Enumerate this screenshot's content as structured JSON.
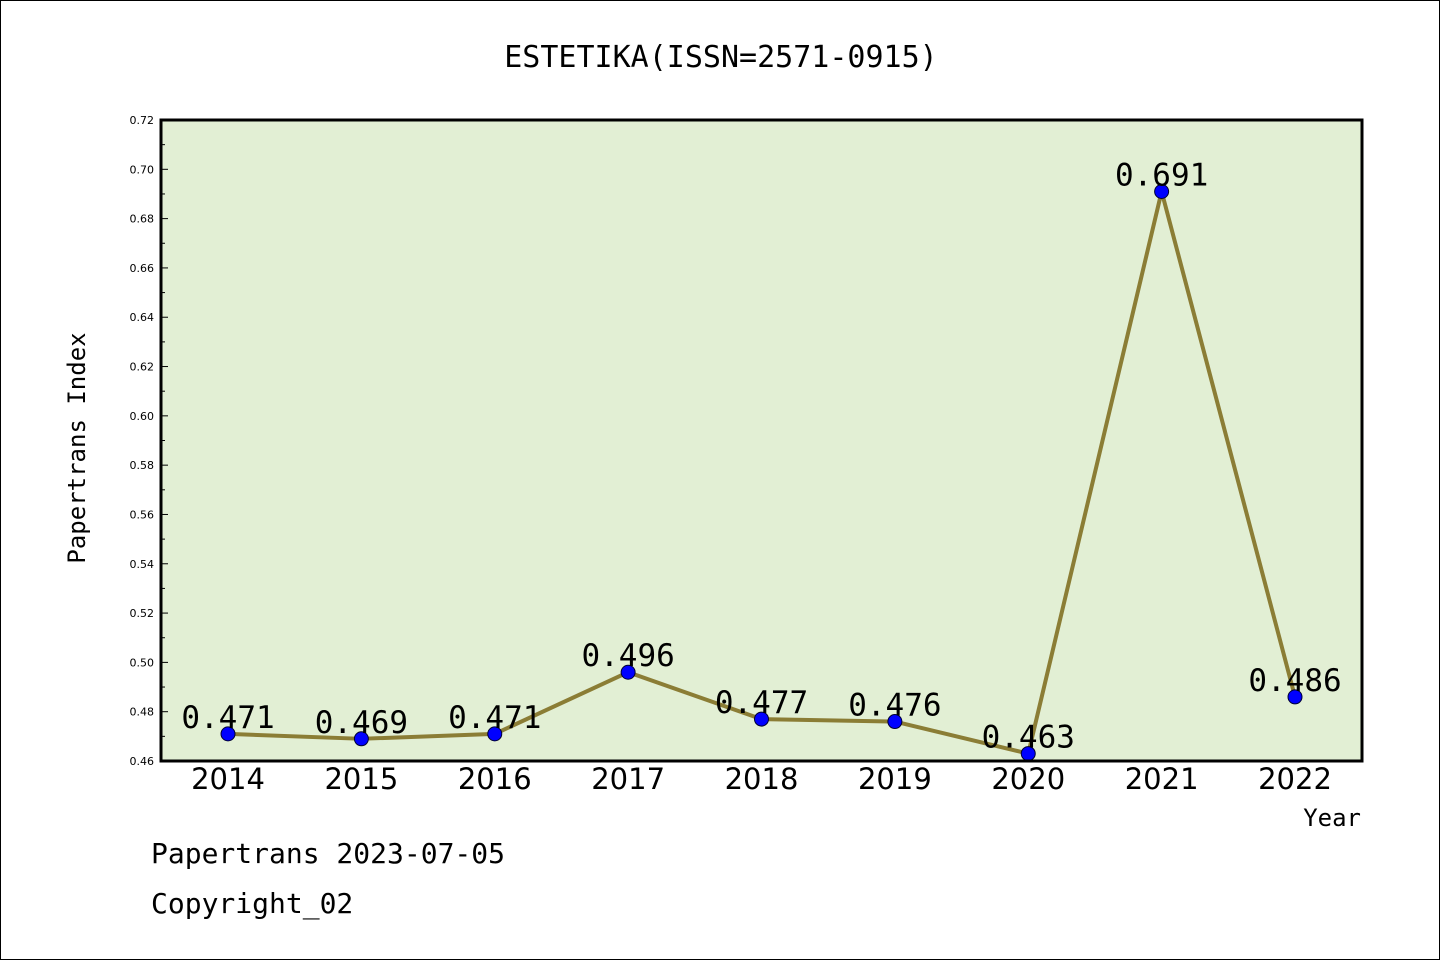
{
  "chart_data": {
    "type": "line",
    "title": "ESTETIKA(ISSN=2571-0915)",
    "xlabel": "Year",
    "ylabel": "Papertrans Index",
    "categories": [
      "2014",
      "2015",
      "2016",
      "2017",
      "2018",
      "2019",
      "2020",
      "2021",
      "2022"
    ],
    "values": [
      0.471,
      0.469,
      0.471,
      0.496,
      0.477,
      0.476,
      0.463,
      0.691,
      0.486
    ],
    "data_labels": [
      "0.471",
      "0.469",
      "0.471",
      "0.496",
      "0.477",
      "0.476",
      "0.463",
      "0.691",
      "0.486"
    ],
    "ylim": [
      0.46,
      0.72
    ],
    "yticks": [
      "0.46",
      "0.48",
      "0.50",
      "0.52",
      "0.54",
      "0.56",
      "0.58",
      "0.60",
      "0.62",
      "0.64",
      "0.66",
      "0.68",
      "0.70",
      "0.72"
    ],
    "grid": false,
    "colors": {
      "plot_background": "#e2efd4",
      "line": "#8b7d35",
      "marker": "#0000ff"
    }
  },
  "footer": {
    "date_text": "Papertrans 2023-07-05",
    "copyright_text": "Copyright_02"
  }
}
